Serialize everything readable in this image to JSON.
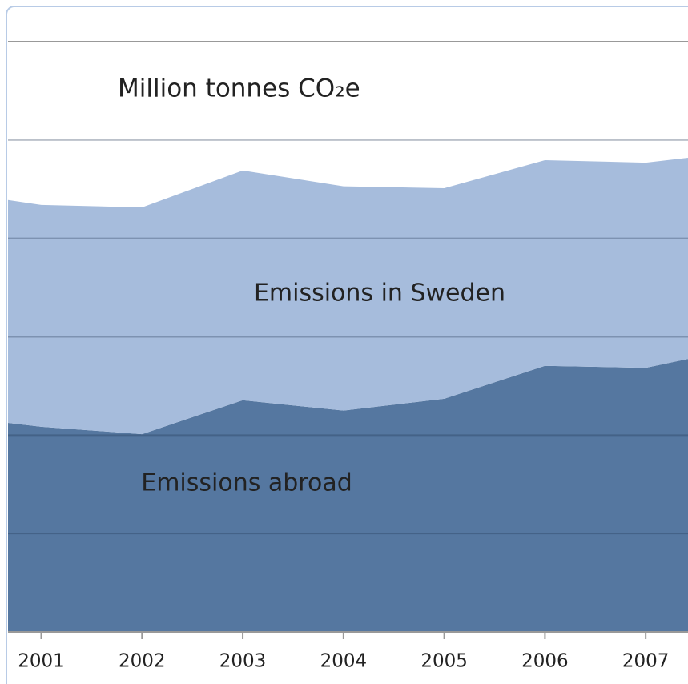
{
  "chart_data": {
    "type": "stacked_area",
    "y_label": "Million tonnes CO₂e",
    "x": [
      2000.67,
      2001,
      2002,
      2003,
      2004,
      2005,
      2006,
      2007,
      2007.42
    ],
    "xlim": [
      2000.67,
      2007.42
    ],
    "xticks": [
      2001,
      2002,
      2003,
      2004,
      2005,
      2006,
      2007
    ],
    "ylim": [
      0,
      120
    ],
    "yticks": [
      0,
      20,
      40,
      60,
      80,
      100,
      120
    ],
    "grid": true,
    "series": [
      {
        "name": "Emissions abroad",
        "color": "#5577a0",
        "values": [
          42.5,
          41.7,
          40.2,
          47.1,
          45.0,
          47.4,
          54.1,
          53.7,
          55.5
        ]
      },
      {
        "name": "Emissions in Sweden",
        "color": "#a6bcdc",
        "values": [
          45.3,
          45.1,
          46.1,
          46.7,
          45.6,
          42.8,
          41.8,
          41.7,
          40.9
        ]
      }
    ]
  }
}
